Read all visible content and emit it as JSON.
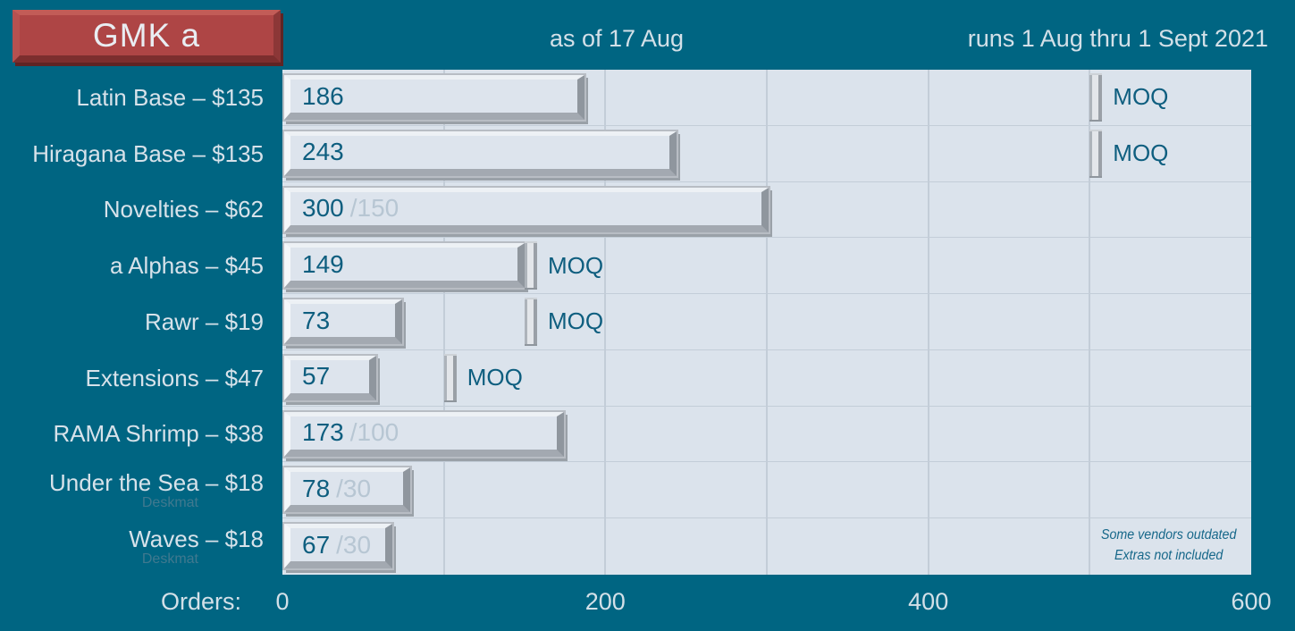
{
  "title": "GMK a",
  "header": {
    "as_of": "as of 17 Aug",
    "runs": "runs 1 Aug thru 1 Sept 2021"
  },
  "axis": {
    "label": "Orders:",
    "ticks": [
      0,
      200,
      400,
      600
    ]
  },
  "note": {
    "line1": "Some vendors outdated",
    "line2": "Extras not included"
  },
  "colors": {
    "background": "#006582",
    "accent_red": "#AE4545",
    "plot_bg": "#DBE3EC",
    "grid": "#C3CDD8",
    "bar_face": "#DDE4ED",
    "bar_frame_dark": "#A3A9B1",
    "value_text": "#0E5E7F",
    "met_moq_text": "#B7C6D3",
    "label_text": "#D7E2EA"
  },
  "chart_data": {
    "type": "bar",
    "orientation": "horizontal",
    "title": "GMK a group buy orders as of 17 Aug (runs 1 Aug thru 1 Sept 2021)",
    "xlabel": "Orders",
    "xlim": [
      0,
      600
    ],
    "gridline_interval": 100,
    "rows": [
      {
        "label": "Latin Base – $135",
        "value": 186,
        "moq": 500,
        "moq_marker": true,
        "moq_text": "MOQ"
      },
      {
        "label": "Hiragana Base – $135",
        "value": 243,
        "moq": 500,
        "moq_marker": true,
        "moq_text": "MOQ"
      },
      {
        "label": "Novelties – $62",
        "value": 300,
        "moq": 150,
        "moq_met_label": "/150"
      },
      {
        "label": "a Alphas – $45",
        "value": 149,
        "moq": 150,
        "moq_marker": true,
        "moq_text": "MOQ"
      },
      {
        "label": "Rawr – $19",
        "value": 73,
        "moq": 150,
        "moq_marker": true,
        "moq_text": "MOQ"
      },
      {
        "label": "Extensions – $47",
        "value": 57,
        "moq": 100,
        "moq_marker": true,
        "moq_text": "MOQ"
      },
      {
        "label": "RAMA Shrimp – $38",
        "value": 173,
        "moq": 100,
        "moq_met_label": "/100"
      },
      {
        "label": "Under the Sea – $18",
        "sub": "Deskmat",
        "value": 78,
        "moq": 30,
        "moq_met_label": "/30"
      },
      {
        "label": "Waves – $18",
        "sub": "Deskmat",
        "value": 67,
        "moq": 30,
        "moq_met_label": "/30"
      }
    ]
  }
}
